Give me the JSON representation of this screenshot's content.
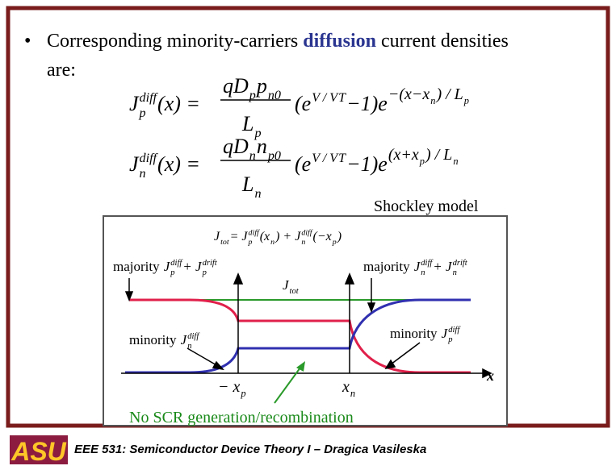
{
  "bullet": {
    "start": "Corresponding minority-carriers",
    "highlight": "diffusion",
    "end": "current densities",
    "wrap": "are:"
  },
  "equations": [
    {
      "lhs": [
        "J",
        "diff",
        "p",
        "(x) ="
      ],
      "numerator": [
        "qD",
        "p",
        "p",
        "n0"
      ],
      "denominator": [
        "L",
        "p"
      ],
      "factor": [
        "(e",
        "V / V",
        "T",
        "−1)e"
      ],
      "exponent": [
        "−(x−x",
        "n",
        ") / L",
        "p"
      ]
    },
    {
      "lhs": [
        "J",
        "diff",
        "n",
        "(x) ="
      ],
      "numerator": [
        "qD",
        "n",
        "n",
        "p0"
      ],
      "denominator": [
        "L",
        "n"
      ],
      "factor": [
        "(e",
        "V / V",
        "T",
        "−1)e"
      ],
      "exponent": [
        "(x+x",
        "p",
        ") / L",
        "n"
      ]
    }
  ],
  "figure": {
    "caption": "Shockley model",
    "jtot_eq": [
      "J",
      "tot",
      " = J",
      "diff",
      "p",
      "(x",
      "n",
      ") + J",
      "diff",
      "n",
      "(−x",
      "p",
      ")"
    ],
    "majority_left": [
      "majority",
      "J",
      "diff",
      "p",
      " + J",
      "drift",
      "p"
    ],
    "majority_right": [
      "majority",
      "J",
      "diff",
      "n",
      " + J",
      "drift",
      "n"
    ],
    "jtot": [
      "J",
      "tot"
    ],
    "minority_left": [
      "minority",
      "J",
      "diff",
      "n"
    ],
    "minority_right": [
      "minority",
      "J",
      "diff",
      "p"
    ],
    "neg_xp": [
      "− x",
      "p"
    ],
    "xn": [
      "x",
      "n"
    ],
    "axis": "x",
    "note": "No SCR generation/recombination"
  },
  "footer": {
    "logo": "ASU",
    "text": "EEE 531: Semiconductor Device Theory I – Dragica Vasileska"
  }
}
